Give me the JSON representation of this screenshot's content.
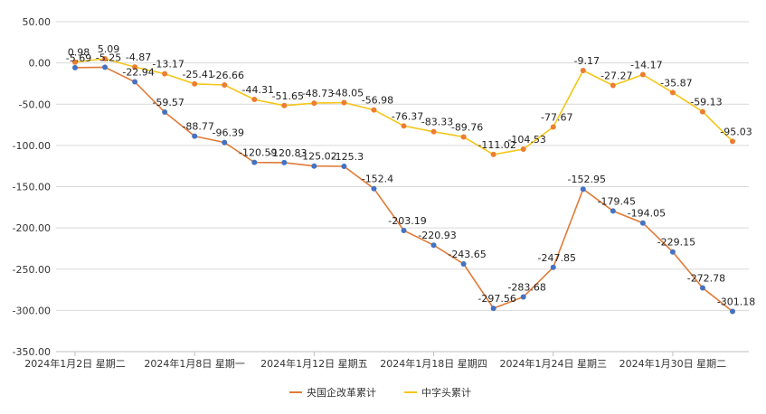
{
  "chart_data": {
    "type": "line",
    "title": "",
    "xlabel": "",
    "ylabel": "",
    "ylim": [
      -350,
      50
    ],
    "y_ticks": [
      "50.00",
      "0.00",
      "-50.00",
      "-100.00",
      "-150.00",
      "-200.00",
      "-250.00",
      "-300.00",
      "-350.00"
    ],
    "y_tick_values": [
      50,
      0,
      -50,
      -100,
      -150,
      -200,
      -250,
      -300,
      -350
    ],
    "x_tick_labels": [
      {
        "index": 0,
        "label": "2024年1月2日 星期二"
      },
      {
        "index": 4,
        "label": "2024年1月8日 星期一"
      },
      {
        "index": 8,
        "label": "2024年1月12日 星期五"
      },
      {
        "index": 12,
        "label": "2024年1月18日 星期四"
      },
      {
        "index": 16,
        "label": "2024年1月24日 星期三"
      },
      {
        "index": 20,
        "label": "2024年1月30日 星期二"
      }
    ],
    "point_count": 23,
    "grid": "horizontal",
    "legend_position": "bottom",
    "series": [
      {
        "name": "央国企改革累计",
        "color": "#E07B39",
        "marker_color": "#4472C4",
        "values": [
          -5.69,
          -5.25,
          -22.94,
          -59.57,
          -88.77,
          -96.39,
          -120.59,
          -120.83,
          -125.02,
          -125.3,
          -152.4,
          -203.19,
          -220.93,
          -243.65,
          -297.56,
          -283.68,
          -247.85,
          -152.95,
          -179.45,
          -194.05,
          -229.15,
          -272.78,
          -301.18
        ],
        "labels": [
          "-5.69",
          "-5.25",
          "-22.94",
          "-59.57",
          "-88.77",
          "-96.39",
          "-120.59",
          "-120.83",
          "-125.02",
          "-125.3",
          "-152.4",
          "-203.19",
          "-220.93",
          "-243.65",
          "-297.56",
          "-283.68",
          "-247.85",
          "-152.95",
          "-179.45",
          "-194.05",
          "-229.15",
          "-272.78",
          "-301.18"
        ]
      },
      {
        "name": "中字头累计",
        "color": "#F5C518",
        "marker_color": "#ED7D31",
        "values": [
          0.98,
          5.09,
          -4.87,
          -13.17,
          -25.41,
          -26.66,
          -44.31,
          -51.65,
          -48.73,
          -48.05,
          -56.98,
          -76.37,
          -83.33,
          -89.76,
          -111.02,
          -104.53,
          -77.67,
          -9.17,
          -27.27,
          -14.17,
          -35.87,
          -59.13,
          -95.03
        ],
        "labels": [
          "0.98",
          "5.09",
          "-4.87",
          "-13.17",
          "-25.41",
          "-26.66",
          "-44.31",
          "-51.65",
          "-48.73",
          "-48.05",
          "-56.98",
          "-76.37",
          "-83.33",
          "-89.76",
          "-111.02",
          "-104.53",
          "-77.67",
          "-9.17",
          "-27.27",
          "-14.17",
          "-35.87",
          "-59.13",
          "-95.03"
        ]
      }
    ]
  }
}
